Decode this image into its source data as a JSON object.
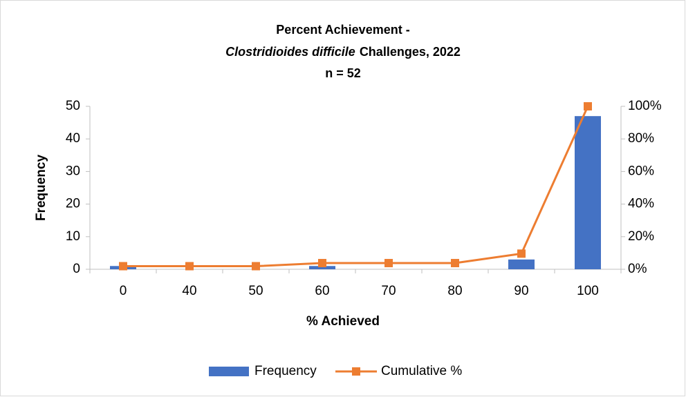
{
  "chart_data": {
    "type": "bar_line",
    "title_lines": [
      "Percent Achievement -",
      "Clostridioides difficile",
      "Challenges, 2022",
      "n = 52"
    ],
    "x_label": "% Achieved",
    "y_label": "Frequency",
    "categories": [
      "0",
      "40",
      "50",
      "60",
      "70",
      "80",
      "90",
      "100"
    ],
    "series": [
      {
        "name": "Frequency",
        "type": "bar",
        "color": "#4472c4",
        "values": [
          1,
          0,
          0,
          1,
          0,
          0,
          3,
          47
        ]
      },
      {
        "name": "Cumulative %",
        "type": "line",
        "axis": "y2",
        "color": "#ed7d31",
        "values": [
          1.9,
          1.9,
          1.9,
          3.8,
          3.8,
          3.8,
          9.6,
          100
        ]
      }
    ],
    "ylim": [
      0,
      50
    ],
    "yticks": [
      0,
      10,
      20,
      30,
      40,
      50
    ],
    "y2lim": [
      0,
      100
    ],
    "y2ticks": [
      {
        "value": 0,
        "label": "0%"
      },
      {
        "value": 20,
        "label": "20%"
      },
      {
        "value": 40,
        "label": "40%"
      },
      {
        "value": 60,
        "label": "60%"
      },
      {
        "value": 80,
        "label": "80%"
      },
      {
        "value": 100,
        "label": "100%"
      }
    ],
    "legend": "bottom",
    "grid": false
  }
}
